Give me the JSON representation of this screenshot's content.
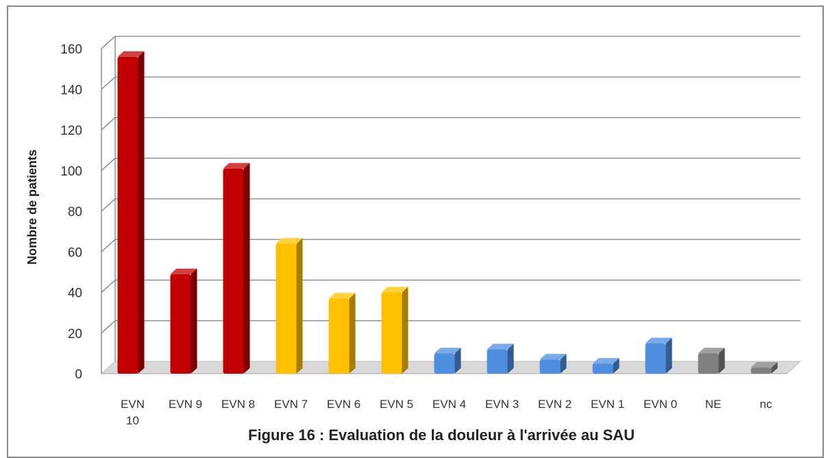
{
  "chart_data": {
    "type": "bar",
    "title": "Figure 16 : Evaluation de la douleur à l'arrivée au SAU",
    "xlabel": "",
    "ylabel": "Nombre de patients",
    "ylim": [
      0,
      160
    ],
    "yticks": [
      0,
      20,
      40,
      60,
      80,
      100,
      120,
      140,
      160
    ],
    "grid": true,
    "style": "3d-column",
    "categories": [
      [
        "EVN",
        "10"
      ],
      [
        "EVN 9"
      ],
      [
        "EVN 8"
      ],
      [
        "EVN 7"
      ],
      [
        "EVN 6"
      ],
      [
        "EVN 5"
      ],
      [
        "EVN 4"
      ],
      [
        "EVN 3"
      ],
      [
        "EVN 2"
      ],
      [
        "EVN 1"
      ],
      [
        "EVN 0"
      ],
      [
        "NE"
      ],
      [
        "nc"
      ]
    ],
    "values": [
      156,
      49,
      101,
      64,
      37,
      40,
      10,
      12,
      7,
      5,
      15,
      10,
      3
    ],
    "colors": [
      "#c00000",
      "#c00000",
      "#c00000",
      "#ffc000",
      "#ffc000",
      "#ffc000",
      "#4f8ede",
      "#4f8ede",
      "#4f8ede",
      "#4f8ede",
      "#4f8ede",
      "#7f7f7f",
      "#7f7f7f"
    ]
  }
}
